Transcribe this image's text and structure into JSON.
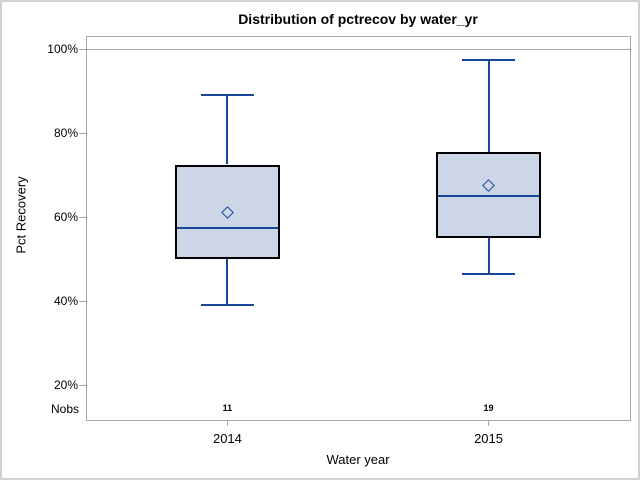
{
  "chart_data": {
    "type": "boxplot",
    "title": "Distribution of pctrecov by water_yr",
    "xlabel": "Water year",
    "ylabel": "Pct Recovery",
    "nobs_row_label": "Nobs",
    "categories": [
      "2014",
      "2015"
    ],
    "y_axis": {
      "tick_values": [
        100,
        80,
        60,
        40,
        20
      ],
      "tick_labels": [
        "100%",
        "80%",
        "60%",
        "40%",
        "20%"
      ],
      "unit": "percent"
    },
    "refline_value": 100,
    "boxes": [
      {
        "category": "2014",
        "nobs": "11",
        "whisker_low": 39,
        "q1": 50,
        "median": 57.5,
        "mean": 61,
        "q3": 72.5,
        "whisker_high": 89
      },
      {
        "category": "2015",
        "nobs": "19",
        "whisker_low": 46.5,
        "q1": 55,
        "median": 65,
        "mean": 67.5,
        "q3": 75.5,
        "whisker_high": 97.5
      }
    ],
    "colors": {
      "box_fill": "#ccd6e6",
      "box_border": "#000000",
      "line": "#17459c",
      "axis_frame": "#a6a6a6",
      "text": "#000000",
      "figure_border": "#d3d3d3"
    }
  }
}
